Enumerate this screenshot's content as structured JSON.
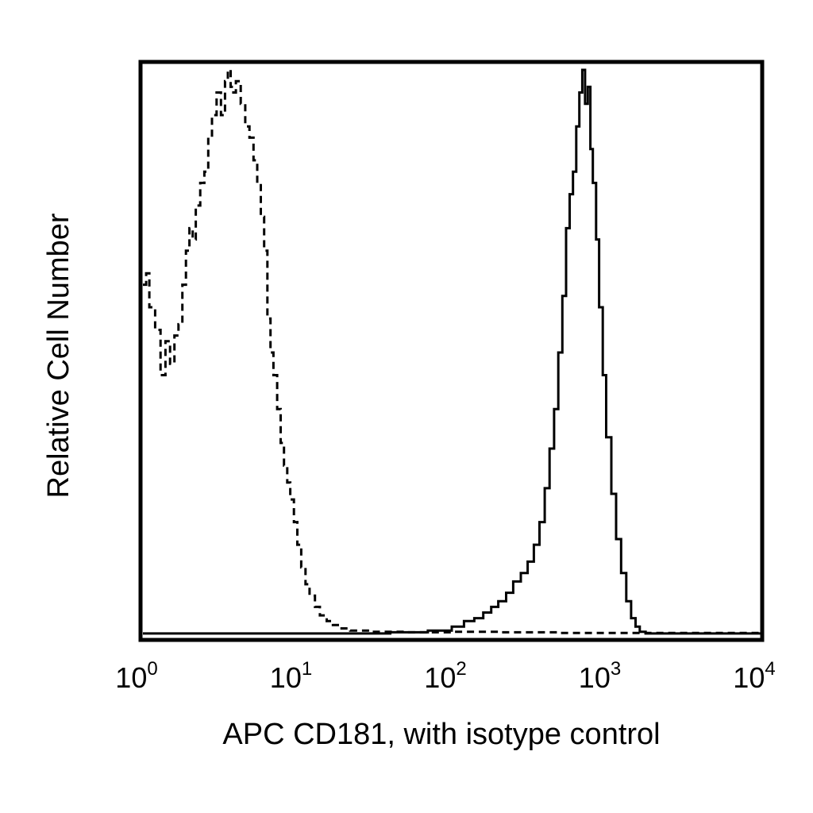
{
  "chart_data": {
    "type": "line",
    "title": "",
    "xlabel": "APC CD181, with isotype control",
    "ylabel": "Relative Cell Number",
    "x_scale": "log",
    "xlim": [
      1,
      10000
    ],
    "ylim": [
      0,
      100
    ],
    "grid": false,
    "legend": "none",
    "x_ticks": [
      {
        "value": 1,
        "base": "10",
        "exp": "0"
      },
      {
        "value": 10,
        "base": "10",
        "exp": "1"
      },
      {
        "value": 100,
        "base": "10",
        "exp": "2"
      },
      {
        "value": 1000,
        "base": "10",
        "exp": "3"
      },
      {
        "value": 10000,
        "base": "10",
        "exp": "4"
      }
    ],
    "series": [
      {
        "style": "dashed",
        "color": "#000000",
        "x": [
          1.0,
          1.05,
          1.1,
          1.2,
          1.3,
          1.4,
          1.5,
          1.6,
          1.7,
          1.8,
          1.9,
          2.0,
          2.1,
          2.2,
          2.35,
          2.5,
          2.65,
          2.8,
          3.0,
          3.2,
          3.4,
          3.55,
          3.7,
          3.85,
          4.0,
          4.3,
          4.6,
          4.9,
          5.2,
          5.5,
          5.8,
          6.1,
          6.4,
          6.7,
          7.0,
          7.4,
          7.8,
          8.2,
          8.6,
          9.0,
          9.5,
          10.0,
          10.6,
          11.3,
          12.0,
          13.0,
          14.0,
          15.5,
          17.0,
          19.0,
          22.0,
          30.0,
          50.0,
          100.0,
          200.0,
          500.0,
          1000.0,
          3000.0,
          10000.0
        ],
        "y": [
          62,
          64,
          58,
          54,
          46,
          52,
          48,
          53,
          55,
          62,
          68,
          72,
          70,
          76,
          80,
          82,
          88,
          92,
          96,
          92,
          98,
          100,
          97,
          96,
          98,
          94,
          90,
          88,
          84,
          80,
          74,
          68,
          56,
          50,
          46,
          40,
          34,
          30,
          27,
          24,
          20,
          16,
          12,
          9,
          7,
          5,
          3.5,
          2.5,
          1.8,
          1.2,
          0.8,
          0.6,
          0.5,
          0.6,
          0.5,
          0.4,
          0.4,
          0.4,
          0.4
        ]
      },
      {
        "style": "solid",
        "color": "#000000",
        "x": [
          1.0,
          10.0,
          40.0,
          70.0,
          100.0,
          120.0,
          140.0,
          160.0,
          180.0,
          200.0,
          225.0,
          250.0,
          280.0,
          310.0,
          340.0,
          370.0,
          400.0,
          430.0,
          460.0,
          490.0,
          520.0,
          550.0,
          580.0,
          610.0,
          640.0,
          670.0,
          700.0,
          730.0,
          760.0,
          790.0,
          820.0,
          860.0,
          900.0,
          950.0,
          1000.0,
          1080.0,
          1160.0,
          1250.0,
          1350.0,
          1450.0,
          1550.0,
          1650.0,
          1800.0,
          2500.0,
          10000.0
        ],
        "y": [
          0.3,
          0.3,
          0.5,
          0.8,
          1.5,
          2.5,
          3.0,
          4.0,
          5.0,
          6.0,
          7.5,
          9.5,
          11,
          13,
          16,
          20,
          26,
          33,
          40,
          50,
          60,
          72,
          78,
          82,
          90,
          96,
          100,
          94,
          97,
          86,
          80,
          70,
          58,
          46,
          35,
          25,
          17,
          11,
          6,
          3,
          1.5,
          0.6,
          0.3,
          0.3,
          0.3
        ]
      }
    ]
  }
}
